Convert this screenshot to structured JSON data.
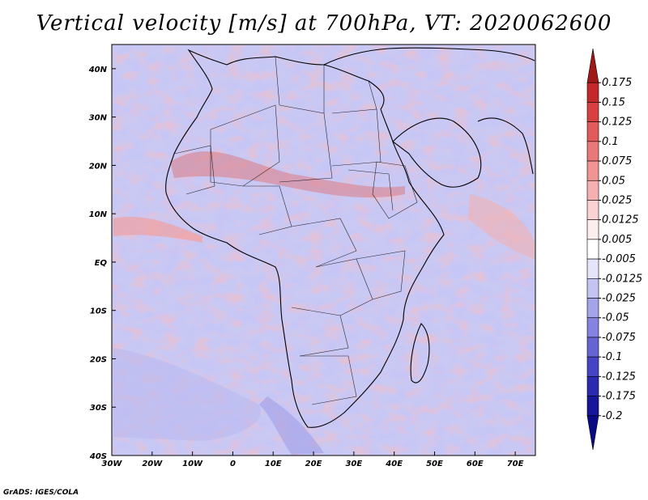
{
  "title": "Vertical velocity [m/s] at 700hPa, VT: 2020062600",
  "credit": "GrADS: IGES/COLA",
  "map": {
    "lon_range": [
      -30,
      75
    ],
    "lat_range": [
      -40,
      45
    ],
    "x_ticks": [
      "30W",
      "20W",
      "10W",
      "0",
      "10E",
      "20E",
      "30E",
      "40E",
      "50E",
      "60E",
      "70E"
    ],
    "x_tick_lons": [
      -30,
      -20,
      -10,
      0,
      10,
      20,
      30,
      40,
      50,
      60,
      70
    ],
    "y_ticks": [
      "40N",
      "30N",
      "20N",
      "10N",
      "EQ",
      "10S",
      "20S",
      "30S",
      "40S"
    ],
    "y_tick_lats": [
      40,
      30,
      20,
      10,
      0,
      -10,
      -20,
      -30,
      -40
    ]
  },
  "colorbar": {
    "labels": [
      "0.175",
      "0.15",
      "0.125",
      "0.1",
      "0.075",
      "0.05",
      "0.025",
      "0.0125",
      "0.005",
      "-0.005",
      "-0.0125",
      "-0.025",
      "-0.05",
      "-0.075",
      "-0.1",
      "-0.125",
      "-0.175",
      "-0.2"
    ],
    "colors": [
      "#a01818",
      "#c42828",
      "#d84040",
      "#e25a5a",
      "#eb7878",
      "#f19494",
      "#f6b0b0",
      "#fad2d2",
      "#fdeeee",
      "#ffffff",
      "#e4e4fa",
      "#c4c4f2",
      "#a4a4ea",
      "#8484e0",
      "#6464d2",
      "#4444c4",
      "#2a2ab0",
      "#16169a",
      "#0a0a86"
    ]
  }
}
